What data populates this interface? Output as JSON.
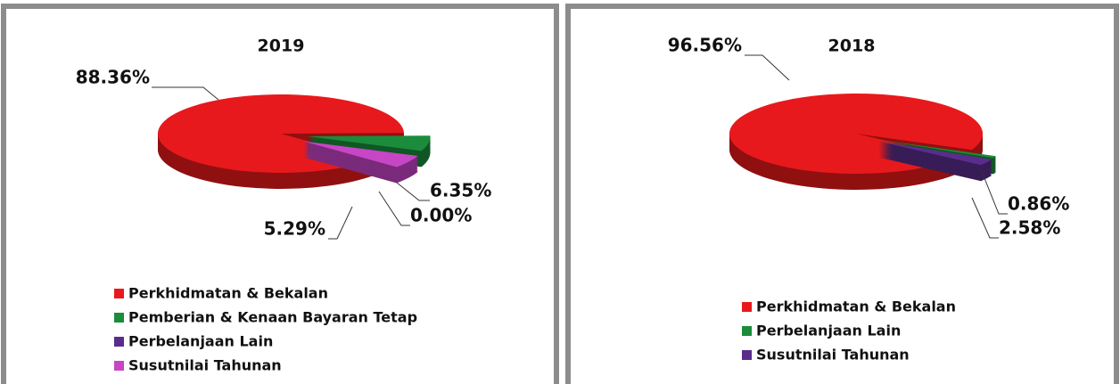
{
  "chart_data": [
    {
      "type": "pie",
      "title": "2019",
      "categories": [
        "Perkhidmatan & Bekalan",
        "Pemberian & Kenaan Bayaran Tetap",
        "Perbelanjaan Lain",
        "Susutnilai Tahunan"
      ],
      "values": [
        88.36,
        6.35,
        0.0,
        5.29
      ],
      "value_labels": [
        "88.36%",
        "6.35%",
        "0.00%",
        "5.29%"
      ],
      "colors": [
        "#e8191c",
        "#1b8c3b",
        "#5a2d8c",
        "#c646c6"
      ]
    },
    {
      "type": "pie",
      "title": "2018",
      "categories": [
        "Perkhidmatan & Bekalan",
        "Perbelanjaan Lain",
        "Susutnilai Tahunan"
      ],
      "values": [
        96.56,
        0.86,
        2.58
      ],
      "value_labels": [
        "96.56%",
        "0.86%",
        "2.58%"
      ],
      "colors": [
        "#e8191c",
        "#1b8c3b",
        "#5a2d8c"
      ]
    }
  ]
}
